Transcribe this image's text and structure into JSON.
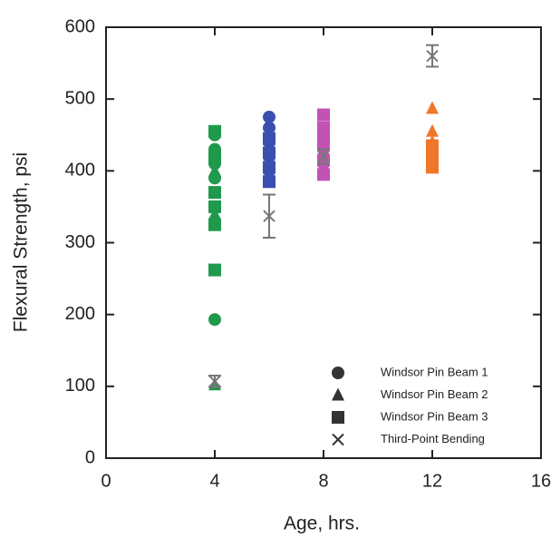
{
  "chart_data": {
    "type": "scatter",
    "x_label": "Age, hrs.",
    "y_label": "Flexural Strength, psi",
    "xlim": [
      0,
      16
    ],
    "xticks": [
      0,
      4,
      8,
      12,
      16
    ],
    "ylim": [
      0,
      600
    ],
    "yticks": [
      0,
      100,
      200,
      300,
      400,
      500,
      600
    ],
    "age_colors": [
      {
        "x": 4,
        "color": "#1f9a4c"
      },
      {
        "x": 6,
        "color": "#3b4fb0"
      },
      {
        "x": 8,
        "color": "#c352b5"
      },
      {
        "x": 12,
        "color": "#f0762a"
      }
    ],
    "legend_position": "lower right",
    "series": [
      {
        "name": "Windsor Pin Beam 1",
        "marker": "circle",
        "x": [
          4,
          4,
          4,
          4,
          4,
          6,
          6,
          6,
          6,
          6,
          8,
          8,
          8
        ],
        "values": [
          193,
          390,
          410,
          430,
          450,
          400,
          420,
          440,
          460,
          475,
          410,
          430,
          450
        ]
      },
      {
        "name": "Windsor Pin Beam 2",
        "marker": "triangle",
        "x": [
          4,
          4,
          4,
          6,
          6,
          6,
          8,
          8,
          12,
          12,
          12
        ],
        "values": [
          102,
          340,
          400,
          390,
          410,
          430,
          400,
          420,
          487,
          455,
          440
        ]
      },
      {
        "name": "Windsor Pin Beam 3",
        "marker": "square",
        "x": [
          4,
          4,
          4,
          4,
          4,
          4,
          6,
          6,
          6,
          6,
          8,
          8,
          8,
          8,
          8,
          12,
          12,
          12
        ],
        "values": [
          262,
          325,
          350,
          370,
          420,
          455,
          385,
          405,
          425,
          445,
          395,
          415,
          440,
          460,
          478,
          405,
          420,
          435
        ]
      },
      {
        "name": "Third-Point Bending",
        "marker": "x",
        "color": "#777777",
        "x": [
          4,
          6,
          8,
          12
        ],
        "values": [
          107,
          337,
          420,
          560
        ],
        "errors": [
          8,
          30,
          10,
          15
        ]
      }
    ]
  }
}
